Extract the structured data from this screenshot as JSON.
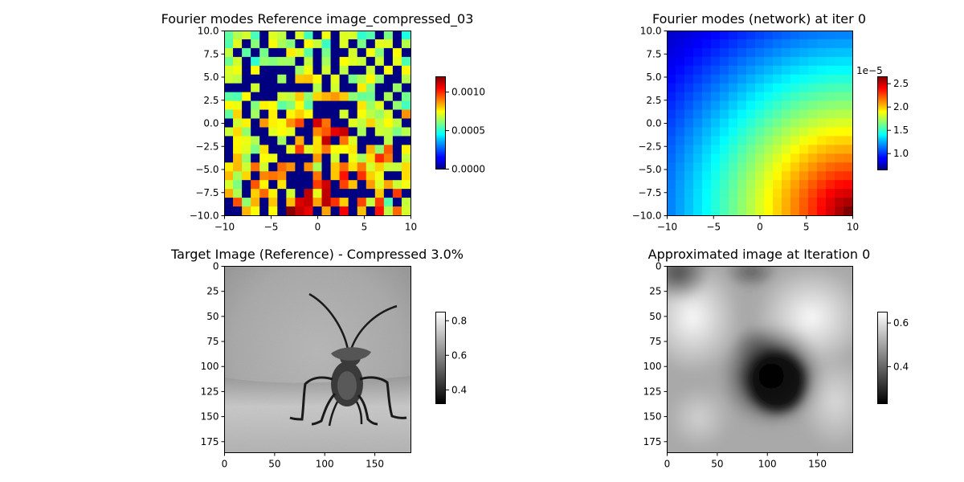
{
  "chart_data": [
    {
      "type": "heatmap",
      "title": "Fourier modes Reference image_compressed_03",
      "colormap": "jet",
      "grid": false,
      "xlim": [
        -10,
        10
      ],
      "ylim": [
        -10,
        10
      ],
      "x_ticks": [
        "−10",
        "−5",
        "0",
        "5",
        "10"
      ],
      "y_ticks": [
        "10.0",
        "7.5",
        "5.0",
        "2.5",
        "0.0",
        "−2.5",
        "−5.0",
        "−7.5",
        "−10.0"
      ],
      "colorbar": {
        "min": 0,
        "max": 0.0012,
        "ticks": [
          "0.0000",
          "0.0005",
          "0.0010"
        ],
        "offset_label": ""
      },
      "grid_size": 21,
      "note_values": "sparse compressed Fourier magnitude map, many zero cells (dark blue), larger magnitudes toward the bottom center"
    },
    {
      "type": "heatmap",
      "title": "Fourier modes (network) at iter 0",
      "colormap": "jet",
      "grid": false,
      "xlim": [
        -10,
        10
      ],
      "ylim": [
        -10,
        10
      ],
      "x_ticks": [
        "−10",
        "−5",
        "0",
        "5",
        "10"
      ],
      "y_ticks": [
        "10.0",
        "7.5",
        "5.0",
        "2.5",
        "0.0",
        "−2.5",
        "−5.0",
        "−7.5",
        "−10.0"
      ],
      "colorbar": {
        "min": 0.65,
        "max": 2.65,
        "ticks": [
          "1.0",
          "1.5",
          "2.0",
          "2.5"
        ],
        "offset_label": "1e−5"
      },
      "grid_size": 21
    },
    {
      "type": "heatmap",
      "title": "Target Image (Reference) - Compressed 3.0%",
      "colormap": "gray",
      "grid": false,
      "x_ticks": [
        "0",
        "50",
        "100",
        "150"
      ],
      "y_ticks": [
        "0",
        "25",
        "50",
        "75",
        "100",
        "125",
        "150",
        "175"
      ],
      "image_size": [
        186,
        186
      ],
      "colorbar": {
        "min": 0.32,
        "max": 0.85,
        "ticks": [
          "0.4",
          "0.6",
          "0.8"
        ],
        "offset_label": ""
      }
    },
    {
      "type": "heatmap",
      "title": "Approximated image at Iteration 0",
      "colormap": "gray",
      "grid": false,
      "x_ticks": [
        "0",
        "50",
        "100",
        "150"
      ],
      "y_ticks": [
        "0",
        "25",
        "50",
        "75",
        "100",
        "125",
        "150",
        "175"
      ],
      "image_size": [
        186,
        186
      ],
      "colorbar": {
        "min": 0.23,
        "max": 0.65,
        "ticks": [
          "0.4",
          "0.6"
        ],
        "offset_label": ""
      }
    }
  ]
}
